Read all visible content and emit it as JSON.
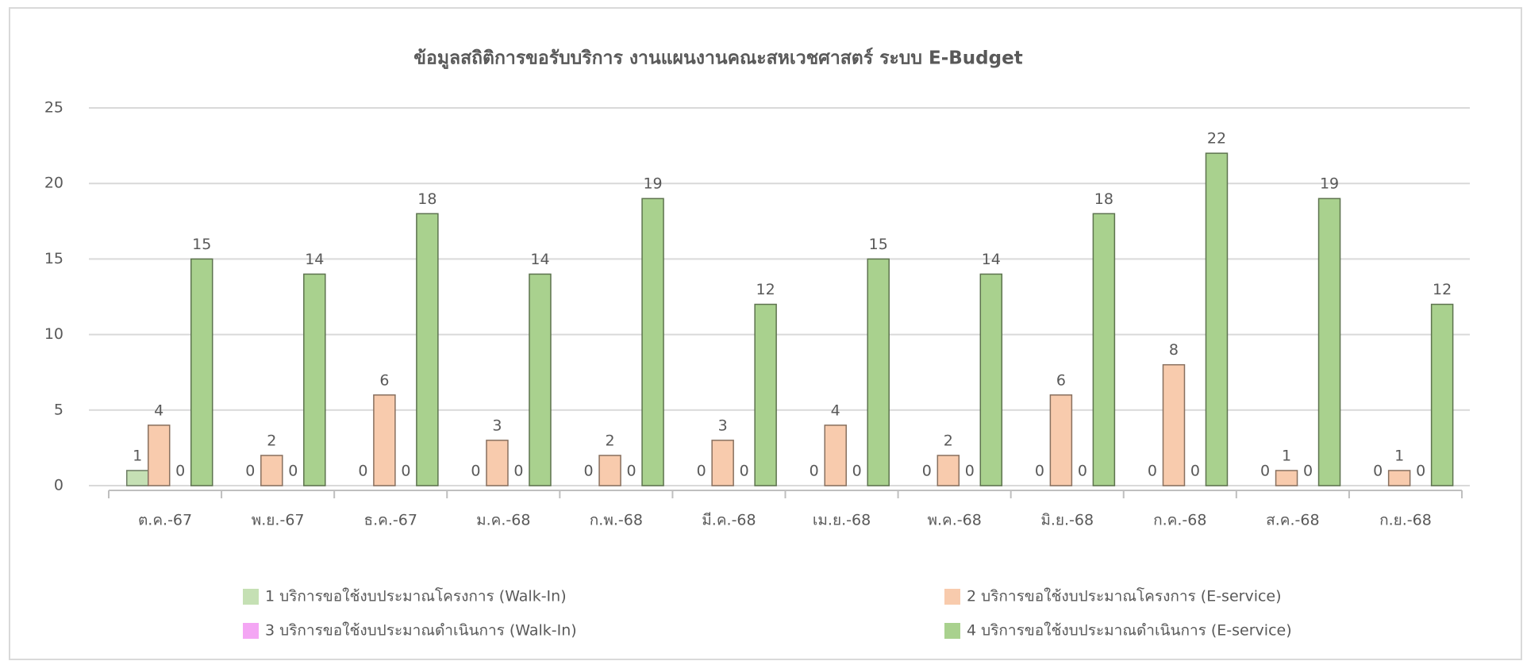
{
  "chart_data": {
    "type": "bar",
    "title": "ข้อมูลสถิติการขอรับบริการ งานแผนงานคณะสหเวชศาสตร์ ระบบ E-Budget",
    "categories": [
      "ต.ค.-67",
      "พ.ย.-67",
      "ธ.ค.-67",
      "ม.ค.-68",
      "ก.พ.-68",
      "มี.ค.-68",
      "เม.ย.-68",
      "พ.ค.-68",
      "มิ.ย.-68",
      "ก.ค.-68",
      "ส.ค.-68",
      "ก.ย.-68"
    ],
    "series": [
      {
        "name": "1 บริการขอใช้งบประมาณโครงการ (Walk-In)",
        "color": "#c5e0b4",
        "values": [
          1,
          0,
          0,
          0,
          0,
          0,
          0,
          0,
          0,
          0,
          0,
          0
        ]
      },
      {
        "name": "2 บริการขอใช้งบประมาณโครงการ (E-service)",
        "color": "#f8cbad",
        "values": [
          4,
          2,
          6,
          3,
          2,
          3,
          4,
          2,
          6,
          8,
          1,
          1
        ]
      },
      {
        "name": "3 บริการขอใช้งบประมาณดำเนินการ (Walk-In)",
        "color": "#f4a6f4",
        "values": [
          0,
          0,
          0,
          0,
          0,
          0,
          0,
          0,
          0,
          0,
          0,
          0
        ]
      },
      {
        "name": "4 บริการขอใช้งบประมาณดำเนินการ (E-service)",
        "color": "#a9d18e",
        "values": [
          15,
          14,
          18,
          14,
          19,
          12,
          15,
          14,
          18,
          22,
          19,
          12
        ]
      }
    ],
    "ylim": [
      0,
      25
    ],
    "yticks": [
      0,
      5,
      10,
      15,
      20,
      25
    ],
    "grid": true,
    "legend": "bottom"
  }
}
